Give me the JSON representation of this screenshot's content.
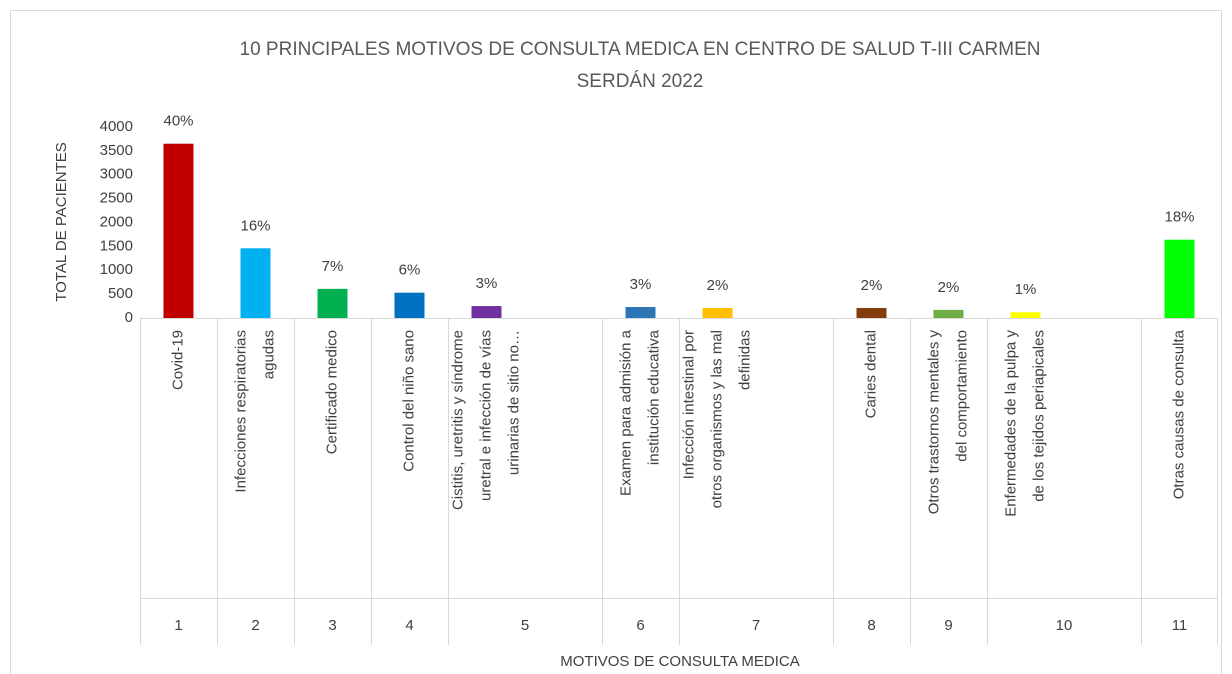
{
  "chart_data": {
    "type": "bar",
    "title": [
      "10 PRINCIPALES MOTIVOS DE CONSULTA MEDICA EN CENTRO DE SALUD T-III CARMEN",
      "SERDÁN 2022"
    ],
    "y_label": "TOTAL DE PACIENTES",
    "x_label": "MOTIVOS DE CONSULTA MEDICA",
    "group_labels": [
      "1",
      "2",
      "3",
      "4",
      "5",
      null,
      "6",
      "7",
      null,
      "8",
      "9",
      "10",
      null,
      "11"
    ],
    "categories": [
      [
        "Covid-19"
      ],
      [
        "Infecciones respiratorias",
        "agudas"
      ],
      [
        "Certificado medico"
      ],
      [
        "Control del niño sano"
      ],
      [
        "Cistitis, uretritis y síndrome",
        "uretral e infección de vías",
        "urinarias de sitio no…"
      ],
      null,
      [
        "Examen para admisión a",
        "institución educativa"
      ],
      [
        "Infección intestinal por",
        "otros organismos y las mal",
        "definidas"
      ],
      null,
      [
        "Caries dental"
      ],
      [
        "Otros trastornos mentales y",
        "del comportamiento"
      ],
      [
        "Enfermedades de la pulpa y",
        "de los tejidos periapicales"
      ],
      null,
      [
        "Otras causas de consulta"
      ]
    ],
    "values": [
      3650,
      1460,
      610,
      530,
      250,
      null,
      230,
      210,
      null,
      210,
      170,
      120,
      null,
      1640
    ],
    "data_labels": [
      "40%",
      "16%",
      "7%",
      "6%",
      "3%",
      null,
      "3%",
      "2%",
      null,
      "2%",
      "2%",
      "1%",
      null,
      "18%"
    ],
    "colors": [
      "#c00000",
      "#00b0f0",
      "#00b050",
      "#0070c0",
      "#7030a0",
      null,
      "#2e75b6",
      "#ffc000",
      null,
      "#843c0c",
      "#70ad47",
      "#ffff00",
      null,
      "#00ff00"
    ],
    "ylim": [
      0,
      4000
    ],
    "yticks": [
      0,
      500,
      1000,
      1500,
      2000,
      2500,
      3000,
      3500,
      4000
    ],
    "grid": false
  }
}
